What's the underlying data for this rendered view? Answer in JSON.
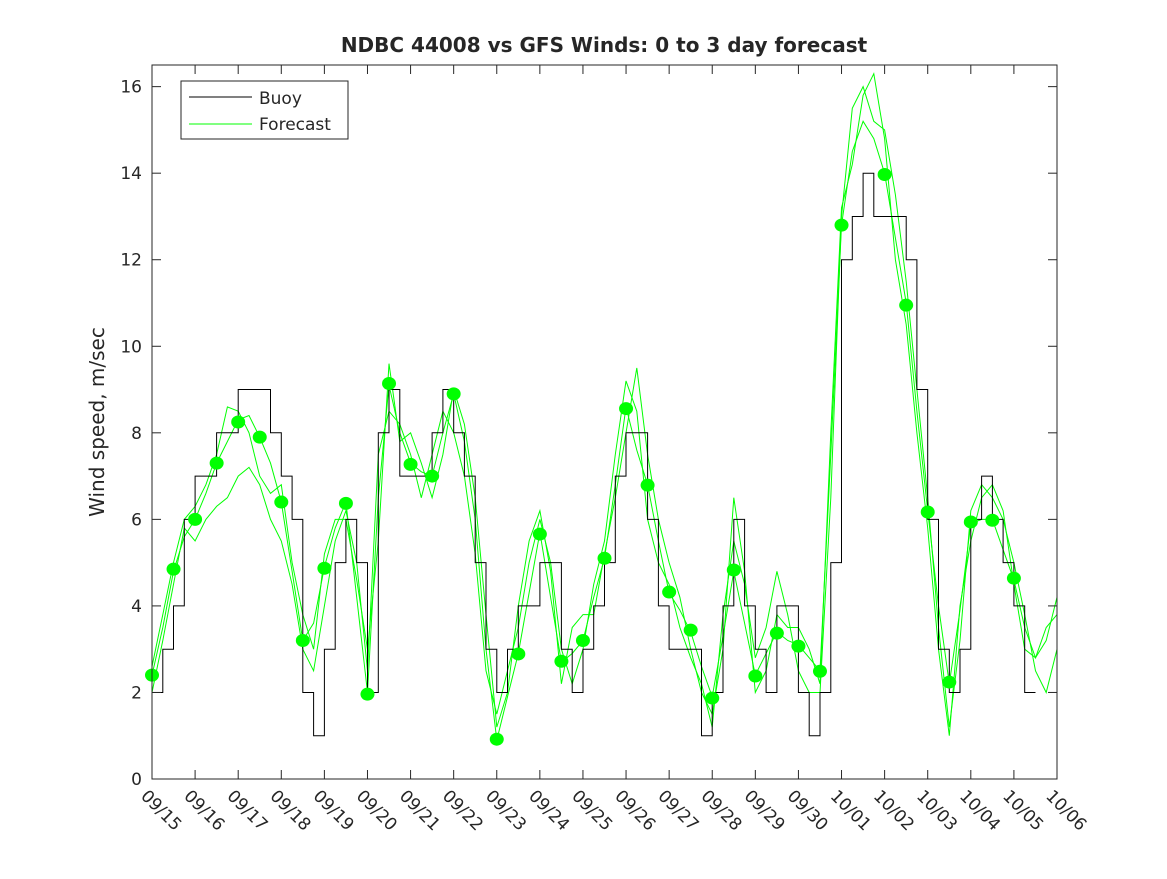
{
  "chart_data": {
    "type": "line",
    "title": "NDBC 44008 vs GFS Winds: 0 to 3 day forecast",
    "xlabel": "",
    "ylabel": "Wind speed, m/sec",
    "xlim_days": [
      0,
      21
    ],
    "ylim": [
      0,
      16.5
    ],
    "yticks": [
      0,
      2,
      4,
      6,
      8,
      10,
      12,
      14,
      16
    ],
    "xtick_labels": [
      "09/15",
      "09/16",
      "09/17",
      "09/18",
      "09/19",
      "09/20",
      "09/21",
      "09/22",
      "09/23",
      "09/24",
      "09/25",
      "09/26",
      "09/27",
      "09/28",
      "09/29",
      "09/30",
      "10/01",
      "10/02",
      "10/03",
      "10/04",
      "10/05",
      "10/06"
    ],
    "legend": {
      "placement": "top-left",
      "entries": [
        "Buoy",
        "Forecast"
      ]
    },
    "colors": {
      "buoy": "#000000",
      "forecast": "#00ff00"
    },
    "time_step_days": 0.25,
    "buoy": [
      2,
      3,
      4,
      6,
      7,
      7,
      8,
      8,
      9,
      9,
      9,
      8,
      7,
      6,
      2,
      1,
      3,
      5,
      6,
      5,
      2,
      8,
      9,
      7,
      7,
      7,
      8,
      9,
      8,
      7,
      5,
      3,
      2,
      3,
      4,
      4,
      5,
      5,
      3,
      2,
      3,
      4,
      5,
      7,
      8,
      8,
      6,
      4,
      3,
      3,
      3,
      1,
      2,
      4,
      6,
      4,
      3,
      2,
      4,
      4,
      2,
      1,
      2,
      5,
      12,
      13,
      14,
      13,
      13,
      13,
      12,
      9,
      6,
      3,
      2,
      3,
      6,
      7,
      6,
      5,
      4,
      2,
      null,
      null,
      null
    ],
    "forecast_series": [
      [
        2.4,
        3.5,
        4.8,
        5.6,
        6.0,
        6.6,
        7.3,
        7.8,
        8.3,
        8.4,
        7.9,
        7.3,
        6.4,
        4.8,
        3.2,
        3.6,
        4.9,
        5.8,
        6.4,
        4.2,
        2.0,
        6.5,
        9.1,
        8.0,
        7.3,
        7.1,
        7.0,
        8.0,
        8.9,
        7.8,
        6.0,
        3.0,
        0.9,
        1.9,
        2.9,
        4.3,
        5.7,
        4.2,
        2.7,
        2.9,
        3.2,
        4.2,
        5.1,
        6.8,
        8.6,
        7.6,
        6.8,
        5.5,
        4.3,
        3.9,
        3.4,
        2.6,
        1.9,
        3.3,
        4.8,
        3.6,
        2.4,
        2.9,
        3.4,
        3.2,
        3.1,
        2.8,
        2.5,
        7.5,
        12.8,
        14.5,
        15.2,
        14.8,
        14.0,
        12.5,
        11.0,
        8.5,
        6.2,
        4.0,
        2.2,
        3.9,
        5.9,
        6.0,
        6.0,
        5.3,
        4.6,
        3.5,
        2.8,
        3.5,
        3.8
      ],
      [
        2.0,
        3.2,
        4.5,
        5.8,
        5.5,
        6.0,
        6.3,
        6.5,
        7.0,
        7.2,
        6.8,
        6.0,
        5.5,
        4.5,
        3.0,
        2.5,
        4.0,
        5.5,
        6.2,
        5.0,
        2.5,
        7.5,
        8.5,
        8.2,
        7.5,
        6.5,
        7.5,
        8.5,
        8.0,
        7.0,
        5.2,
        2.5,
        1.5,
        2.5,
        3.5,
        5.0,
        6.0,
        5.0,
        3.0,
        2.2,
        3.0,
        4.5,
        5.5,
        7.5,
        9.2,
        8.5,
        6.0,
        5.0,
        4.5,
        3.5,
        2.8,
        2.2,
        1.2,
        3.8,
        5.5,
        4.5,
        2.8,
        3.5,
        4.8,
        3.8,
        2.5,
        2.0,
        2.0,
        6.5,
        13.0,
        15.5,
        16.0,
        15.2,
        15.0,
        13.5,
        11.5,
        9.0,
        6.5,
        3.5,
        1.2,
        3.2,
        6.2,
        6.8,
        6.5,
        6.0,
        5.0,
        3.8,
        2.5,
        2.0,
        3.0
      ],
      [
        2.6,
        3.8,
        5.0,
        6.0,
        6.3,
        6.8,
        7.5,
        8.6,
        8.5,
        8.0,
        7.0,
        6.6,
        6.8,
        5.0,
        3.8,
        3.0,
        5.2,
        6.0,
        6.0,
        4.6,
        3.0,
        5.5,
        9.6,
        7.8,
        8.0,
        7.3,
        6.5,
        7.5,
        9.0,
        8.2,
        6.5,
        3.8,
        1.2,
        2.0,
        4.0,
        5.5,
        6.2,
        4.8,
        2.2,
        3.5,
        3.8,
        3.8,
        5.2,
        6.5,
        8.0,
        9.5,
        7.5,
        6.0,
        5.0,
        4.2,
        3.0,
        2.0,
        1.5,
        3.0,
        6.5,
        4.8,
        2.0,
        2.5,
        3.8,
        3.5,
        3.5,
        3.0,
        2.2,
        8.0,
        13.2,
        14.2,
        15.8,
        16.3,
        14.8,
        12.0,
        10.5,
        8.0,
        5.8,
        3.0,
        1.0,
        4.0,
        5.5,
        6.5,
        6.8,
        6.2,
        4.5,
        3.0,
        2.8,
        3.2,
        4.2
      ]
    ],
    "analysis_points": {
      "days": [
        0,
        0.5,
        1,
        1.5,
        2,
        2.5,
        3,
        3.5,
        4,
        4.5,
        5,
        5.5,
        6,
        6.5,
        7,
        8,
        8.5,
        9,
        9.5,
        10,
        10.5,
        11,
        11.5,
        12,
        12.5,
        13,
        13.5,
        14,
        14.5,
        15,
        15.5,
        16,
        17,
        17.5,
        18,
        18.5,
        19,
        19.5,
        20
      ],
      "values": [
        2.4,
        4.85,
        6.0,
        7.3,
        8.25,
        7.9,
        6.4,
        3.2,
        4.87,
        6.37,
        1.96,
        9.14,
        7.27,
        7.0,
        8.9,
        0.92,
        2.89,
        5.66,
        2.72,
        3.2,
        5.1,
        8.56,
        6.79,
        4.32,
        3.44,
        1.87,
        4.83,
        2.38,
        3.37,
        3.07,
        2.49,
        12.8,
        13.97,
        10.95,
        6.17,
        2.24,
        5.94,
        5.98,
        4.64
      ]
    }
  }
}
